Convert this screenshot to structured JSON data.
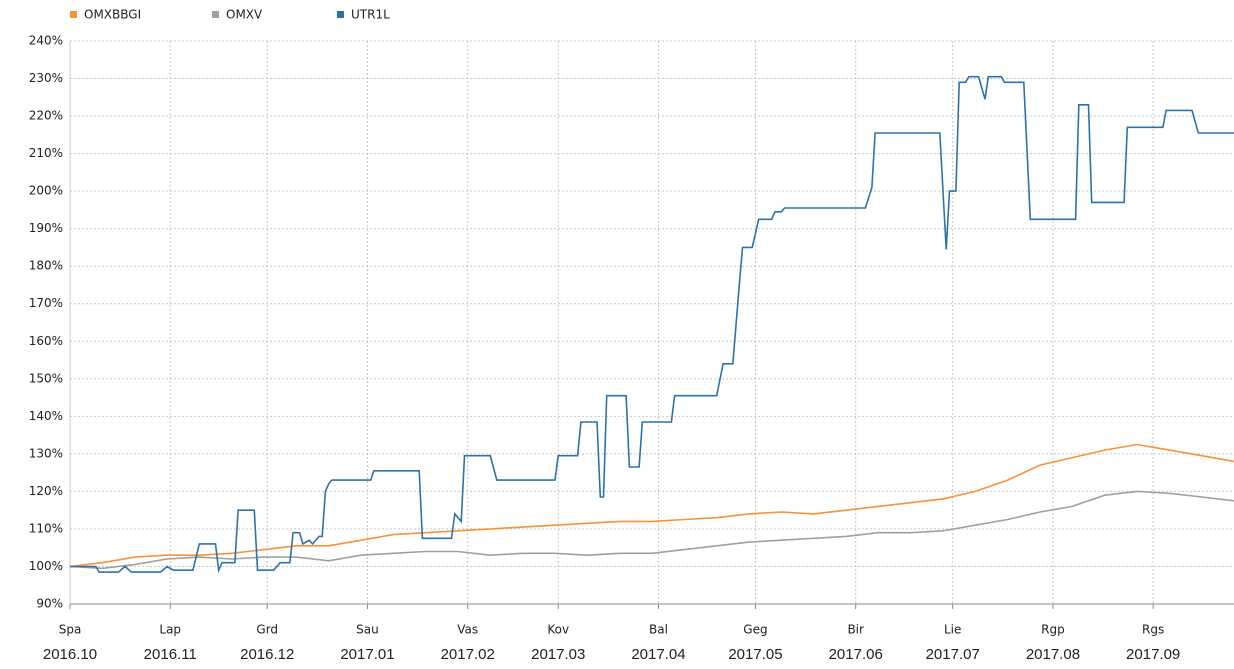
{
  "chart_data": {
    "type": "line",
    "series": [
      {
        "name": "OMXBBGI",
        "color": "#f7923a",
        "x": [
          0,
          10,
          20,
          30,
          40,
          50,
          60,
          70,
          80,
          90,
          100,
          110,
          120,
          130,
          140,
          150,
          160,
          170,
          180,
          190,
          200,
          210,
          220,
          230,
          240,
          250,
          260,
          270,
          280,
          290,
          300,
          310,
          320,
          330,
          340,
          350,
          360
        ],
        "values": [
          100,
          101,
          102.5,
          103,
          103,
          103.5,
          104.5,
          105.5,
          105.5,
          107,
          108.5,
          109,
          109.5,
          110,
          110.5,
          111,
          111.5,
          112,
          112,
          112.5,
          113,
          114,
          114.5,
          114,
          115,
          116,
          117,
          118,
          120,
          123,
          127,
          129,
          131,
          132.5,
          131,
          129.5,
          128
        ]
      },
      {
        "name": "OMXV",
        "color": "#a0a0a0",
        "x": [
          0,
          10,
          20,
          30,
          40,
          50,
          60,
          70,
          80,
          90,
          100,
          110,
          120,
          130,
          140,
          150,
          160,
          170,
          180,
          190,
          200,
          210,
          220,
          230,
          240,
          250,
          260,
          270,
          280,
          290,
          300,
          310,
          320,
          330,
          340,
          350,
          360
        ],
        "values": [
          100,
          99.5,
          100.5,
          102,
          102.5,
          102,
          102.5,
          102.5,
          101.5,
          103,
          103.5,
          104,
          104,
          103,
          103.5,
          103.5,
          103,
          103.5,
          103.5,
          104.5,
          105.5,
          106.5,
          107,
          107.5,
          108,
          109,
          109,
          109.5,
          111,
          112.5,
          114.5,
          116,
          119,
          120,
          119.5,
          118.5,
          117.5
        ]
      },
      {
        "name": "UTR1L",
        "color": "#2e73a8",
        "x": [
          0,
          8,
          9,
          15,
          17,
          19,
          28,
          30,
          32,
          38,
          40,
          45,
          46,
          47,
          51,
          52,
          57,
          58,
          63,
          65,
          68,
          69,
          71,
          72,
          74,
          75,
          77,
          78,
          79,
          80,
          81,
          93,
          94,
          108,
          109,
          118,
          119,
          121,
          122,
          130,
          132,
          150,
          151,
          157,
          158,
          163,
          164,
          165,
          166,
          172,
          173,
          176,
          177,
          186,
          187,
          200,
          202,
          205,
          207,
          208,
          211,
          213,
          217,
          218,
          220,
          221,
          246,
          248,
          249,
          269,
          271,
          272,
          274,
          275,
          277,
          278,
          281,
          283,
          284,
          288,
          289,
          295,
          297,
          311,
          312,
          315,
          316,
          326,
          327,
          338,
          339,
          347,
          349,
          360
        ],
        "values": [
          100,
          100,
          98.5,
          98.5,
          100,
          98.5,
          98.5,
          100,
          99,
          99,
          106,
          106,
          99,
          101,
          101,
          115,
          115,
          99,
          99,
          101,
          101,
          109,
          109,
          106,
          107,
          106,
          108,
          108,
          120,
          122,
          123,
          123,
          125.5,
          125.5,
          107.5,
          107.5,
          114,
          112,
          129.5,
          129.5,
          123,
          123,
          129.5,
          129.5,
          138.5,
          138.5,
          118.5,
          118.5,
          145.5,
          145.5,
          126.5,
          126.5,
          138.5,
          138.5,
          145.5,
          145.5,
          154,
          154,
          175,
          185,
          185,
          192.5,
          192.5,
          194.5,
          194.5,
          195.5,
          195.5,
          201,
          215.5,
          215.5,
          184.5,
          200,
          200,
          229,
          229,
          230.5,
          230.5,
          224.5,
          230.5,
          230.5,
          229,
          229,
          192.5,
          192.5,
          223,
          223,
          197,
          197,
          217,
          217,
          221.5,
          221.5,
          215.5,
          215.5
        ]
      }
    ],
    "xlim": [
      0,
      360
    ],
    "xticks": [
      {
        "value": 0,
        "label": "Spa"
      },
      {
        "value": 31,
        "label": "Lap"
      },
      {
        "value": 61,
        "label": "Grd"
      },
      {
        "value": 92,
        "label": "Sau"
      },
      {
        "value": 123,
        "label": "Vas"
      },
      {
        "value": 151,
        "label": "Kov"
      },
      {
        "value": 182,
        "label": "Bal"
      },
      {
        "value": 212,
        "label": "Geg"
      },
      {
        "value": 243,
        "label": "Bir"
      },
      {
        "value": 273,
        "label": "Lie"
      },
      {
        "value": 304,
        "label": "Rgp"
      },
      {
        "value": 335,
        "label": "Rgs"
      }
    ],
    "period_labels": [
      "2016.10",
      "2016.11",
      "2016.12",
      "2017.01",
      "2017.02",
      "2017.03",
      "2017.04",
      "2017.05",
      "2017.06",
      "2017.07",
      "2017.08",
      "2017.09"
    ],
    "ylim": [
      90,
      240
    ],
    "yticks": [
      {
        "value": 90,
        "label": "90%"
      },
      {
        "value": 100,
        "label": "100%"
      },
      {
        "value": 110,
        "label": "110%"
      },
      {
        "value": 120,
        "label": "120%"
      },
      {
        "value": 130,
        "label": "130%"
      },
      {
        "value": 140,
        "label": "140%"
      },
      {
        "value": 150,
        "label": "150%"
      },
      {
        "value": 160,
        "label": "160%"
      },
      {
        "value": 170,
        "label": "170%"
      },
      {
        "value": 180,
        "label": "180%"
      },
      {
        "value": 190,
        "label": "190%"
      },
      {
        "value": 200,
        "label": "200%"
      },
      {
        "value": 210,
        "label": "210%"
      },
      {
        "value": 220,
        "label": "220%"
      },
      {
        "value": 230,
        "label": "230%"
      },
      {
        "value": 240,
        "label": "240%"
      }
    ],
    "grid": true,
    "legend": "top-left"
  }
}
